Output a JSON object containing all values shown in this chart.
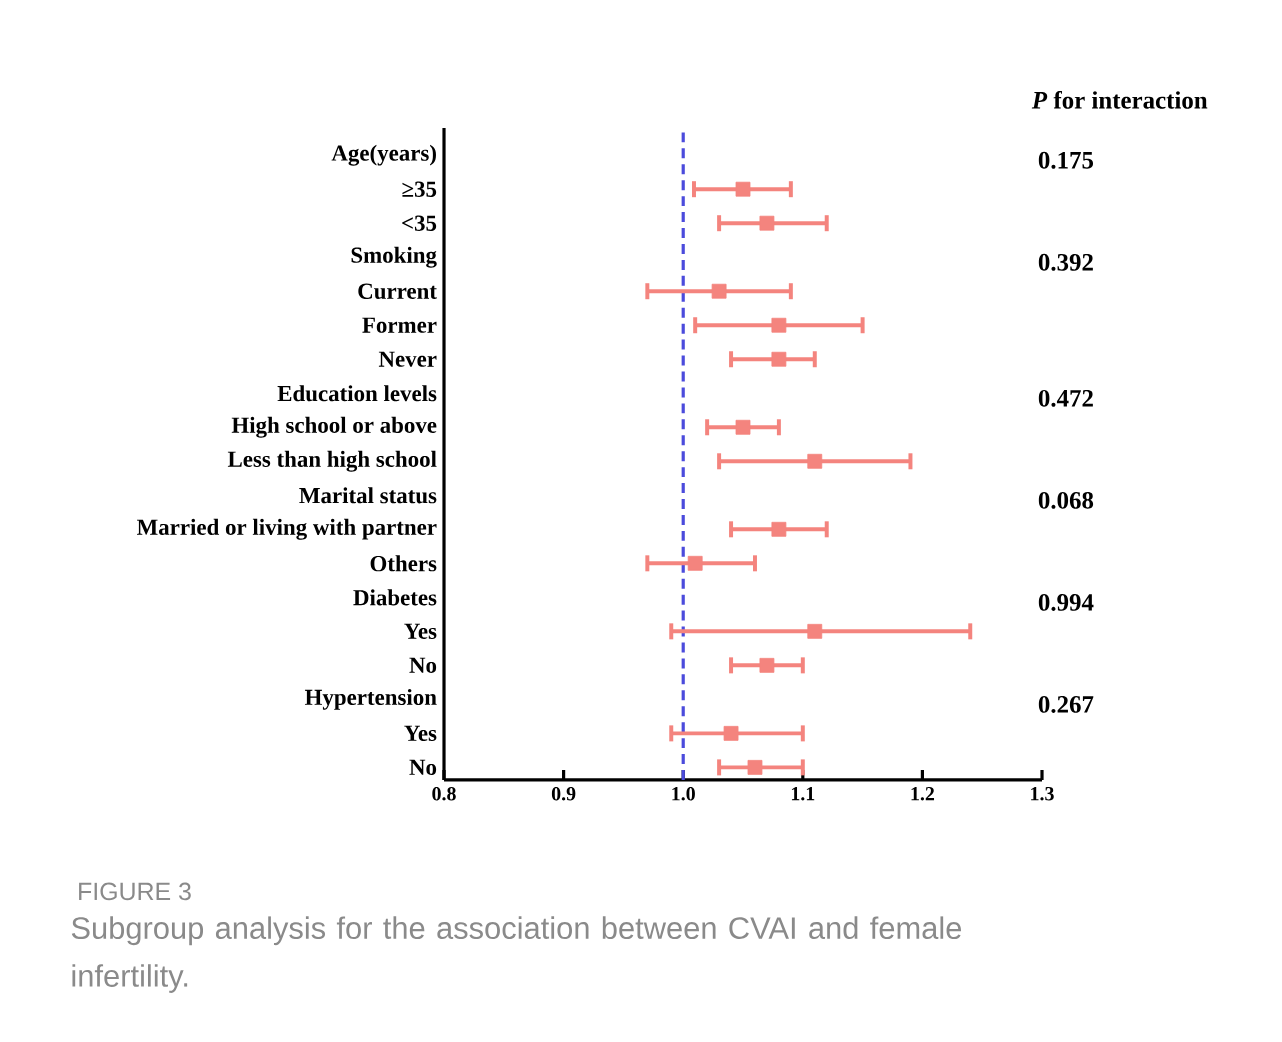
{
  "chart_data": {
    "type": "scatter",
    "orientation": "horizontal",
    "categories": [
      "Age(years)",
      "≥35",
      "<35",
      "Smoking",
      "Current",
      "Former",
      "Never",
      "Education levels",
      "High school or above",
      "Less than high school",
      "Marital status",
      "Married or living with partner",
      "Others",
      "Diabetes",
      "Yes",
      "No",
      "Hypertension",
      "Yes",
      "No"
    ],
    "series": [
      {
        "color": "#f4847e",
        "values": [
          null,
          1.05,
          1.07,
          null,
          1.03,
          1.08,
          1.08,
          null,
          1.05,
          1.11,
          null,
          1.08,
          1.01,
          null,
          1.11,
          1.07,
          null,
          1.04,
          1.06
        ],
        "errors": [
          null,
          [
            1.009,
            1.09
          ],
          [
            1.03,
            1.12
          ],
          null,
          [
            0.97,
            1.09
          ],
          [
            1.01,
            1.15
          ],
          [
            1.04,
            1.11
          ],
          null,
          [
            1.02,
            1.08
          ],
          [
            1.03,
            1.19
          ],
          null,
          [
            1.04,
            1.12
          ],
          [
            0.97,
            1.06
          ],
          null,
          [
            0.99,
            1.24
          ],
          [
            1.04,
            1.1
          ],
          null,
          [
            0.99,
            1.1
          ],
          [
            1.03,
            1.1
          ]
        ]
      }
    ],
    "marker": "square",
    "xlim": [
      0.8,
      1.3
    ],
    "xticks": [
      0.8,
      0.9,
      {
        "value": 1.0,
        "label": "1.0"
      },
      1.1,
      1.2,
      1.3
    ],
    "ref_lines": [
      {
        "axis": "x",
        "value": 1.0,
        "color": "#4b4bdc",
        "line_style": "dashed"
      }
    ],
    "annotations": [
      "*P* for interaction",
      "0.175",
      "0.392",
      "0.472",
      "0.068",
      "0.994",
      "0.267",
      "FIGURE 3",
      "Subgroup analysis for the association between CVAI and female infertility."
    ]
  }
}
